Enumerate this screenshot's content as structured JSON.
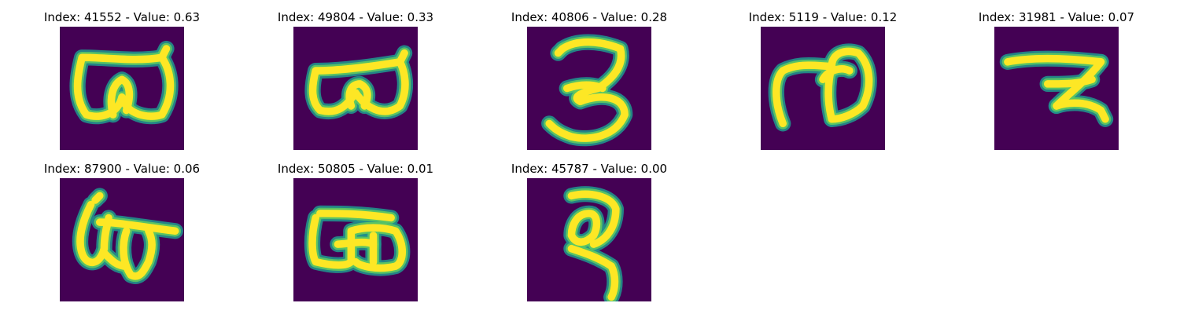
{
  "figure": {
    "panels": [
      {
        "title": "Index: 41552 - Value: 0.63",
        "image": "digit-image-41552"
      },
      {
        "title": "Index: 49804 - Value: 0.33",
        "image": "digit-image-49804"
      },
      {
        "title": "Index: 40806 - Value: 0.28",
        "image": "digit-image-40806"
      },
      {
        "title": "Index: 5119 - Value: 0.12",
        "image": "digit-image-5119"
      },
      {
        "title": "Index: 31981 - Value: 0.07",
        "image": "digit-image-31981"
      },
      {
        "title": "Index: 87900 - Value: 0.06",
        "image": "digit-image-87900"
      },
      {
        "title": "Index: 50805 - Value: 0.01",
        "image": "digit-image-50805"
      },
      {
        "title": "Index: 45787 - Value: 0.00",
        "image": "digit-image-45787"
      }
    ],
    "colors": {
      "background": "#440154",
      "stroke_outer": "#21918c",
      "stroke_mid": "#5ec962",
      "stroke_core": "#fde725"
    }
  }
}
